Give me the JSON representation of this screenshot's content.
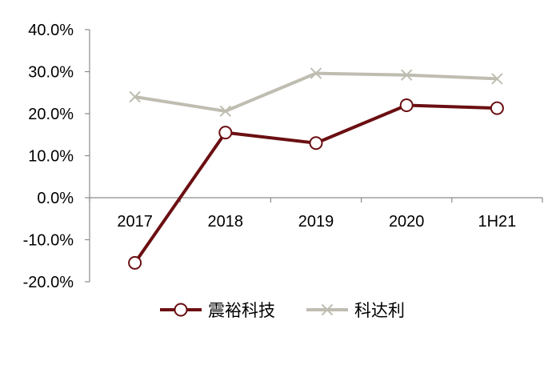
{
  "chart_data": {
    "type": "line",
    "categories": [
      "2017",
      "2018",
      "2019",
      "2020",
      "1H21"
    ],
    "series": [
      {
        "name": "震裕科技",
        "values": [
          -15.5,
          15.5,
          13.0,
          22.0,
          21.3
        ],
        "color": "#6b0f12",
        "marker": "circle"
      },
      {
        "name": "科达利",
        "values": [
          24.0,
          20.6,
          29.6,
          29.2,
          28.3
        ],
        "color": "#bfbdb1",
        "marker": "x"
      }
    ],
    "y_ticks": [
      "40.0%",
      "30.0%",
      "20.0%",
      "10.0%",
      "0.0%",
      "-10.0%",
      "-20.0%"
    ],
    "ylim": [
      -20,
      40
    ],
    "y_unit": "%",
    "grid": false,
    "legend_position": "bottom"
  }
}
